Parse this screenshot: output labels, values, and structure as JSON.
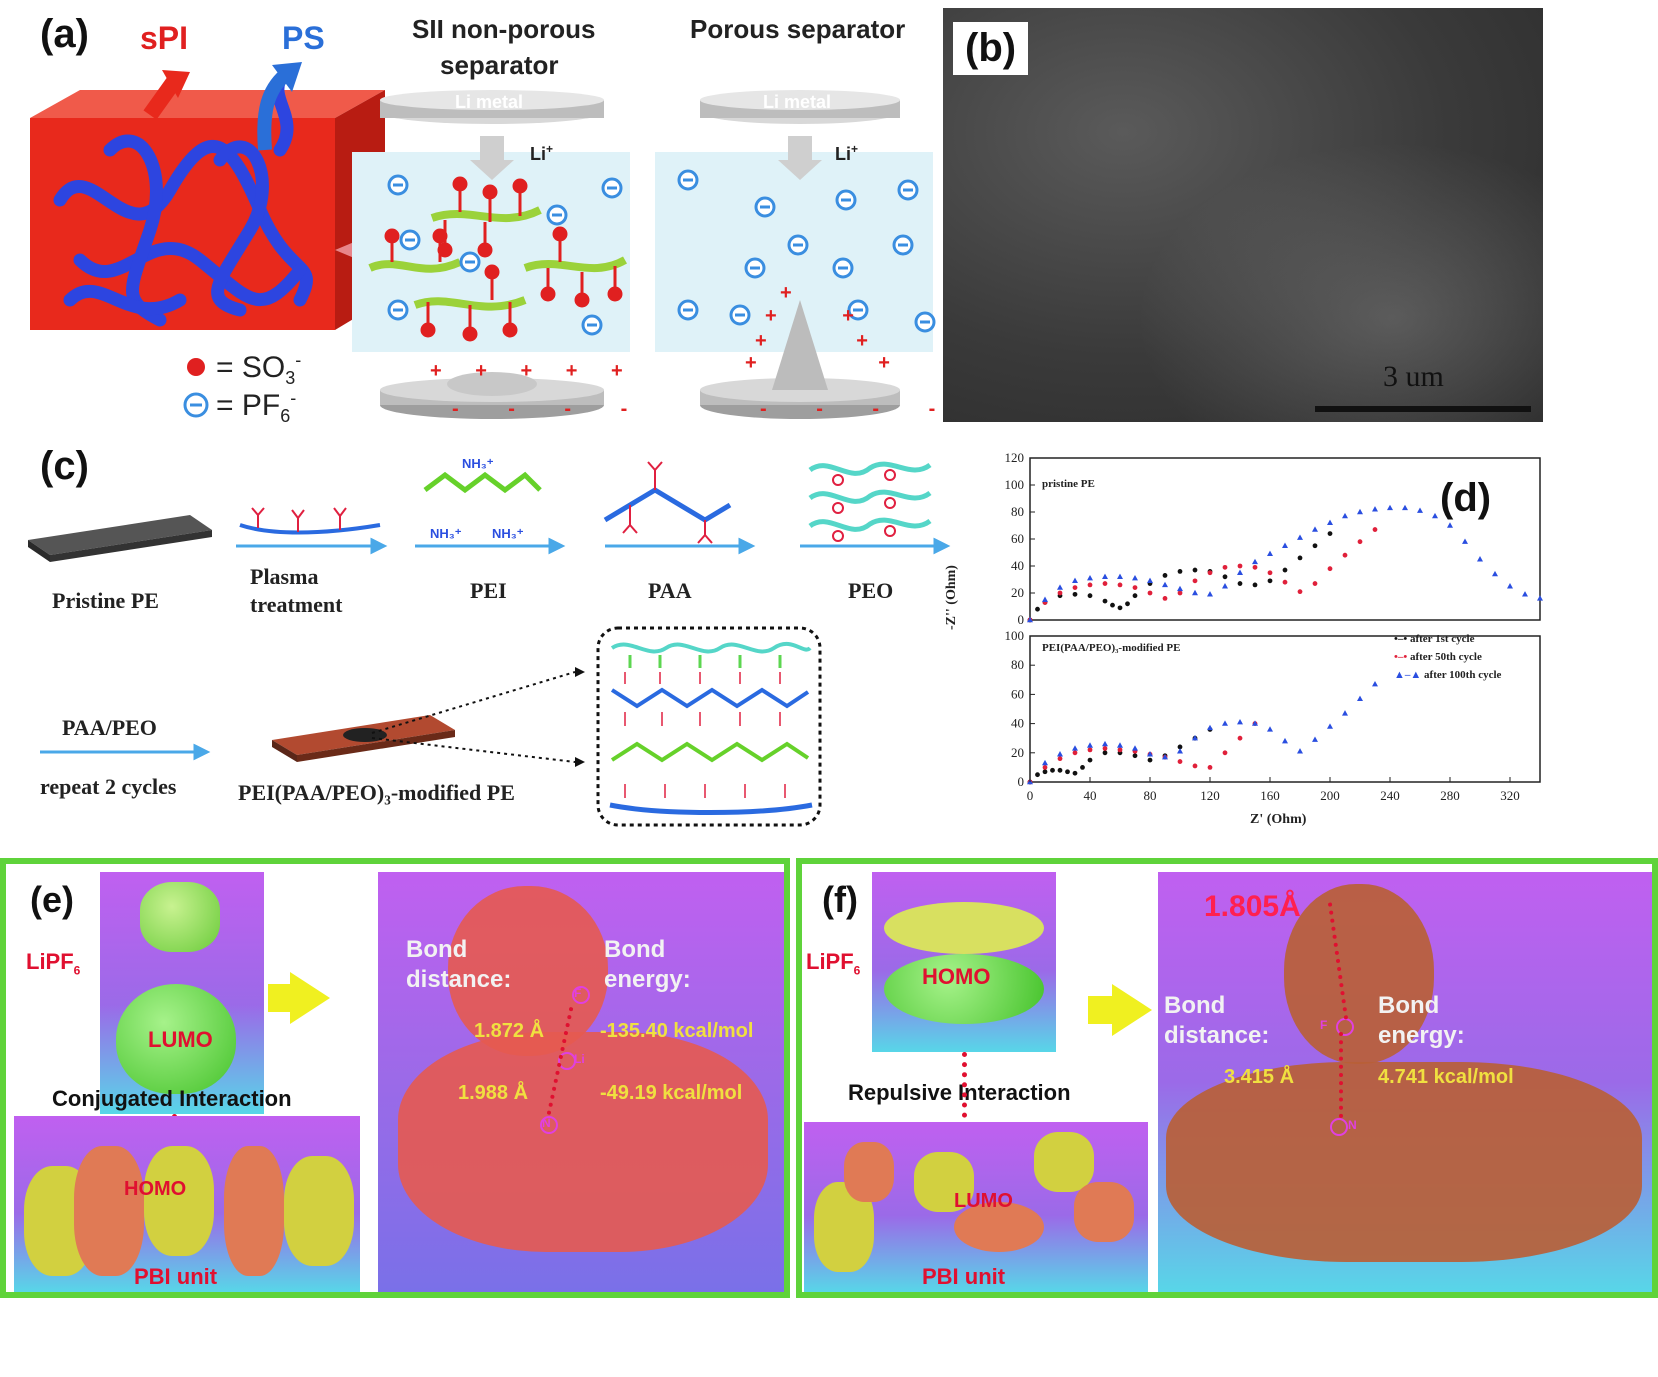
{
  "panel_a": {
    "label": "(a)",
    "spi": "sPI",
    "ps": "PS",
    "sii_title_1": "SII non-porous",
    "sii_title_2": "separator",
    "porous_title": "Porous separator",
    "li_metal": "Li metal",
    "li_ion": "Li",
    "li_sup": "+",
    "legend_so3": "= SO",
    "legend_so3_sub": "3",
    "legend_so3_sup": "-",
    "legend_pf6": "= PF",
    "legend_pf6_sub": "6",
    "legend_pf6_sup": "-",
    "colors": {
      "spi": "#e02020",
      "ps": "#2a6fd8",
      "cube": "#e8291c",
      "chain": "#2d45e0"
    }
  },
  "panel_b": {
    "label": "(b)",
    "scale": "3 um"
  },
  "panel_c": {
    "label": "(c)",
    "pristine": "Pristine PE",
    "plasma_1": "Plasma",
    "plasma_2": "treatment",
    "pei": "PEI",
    "paa": "PAA",
    "peo": "PEO",
    "paapeo": "PAA/PEO",
    "repeat": "repeat 2 cycles",
    "modified": "PEI(PAA/PEO)₃-modified PE",
    "nh3": "NH₃⁺"
  },
  "panel_d": {
    "label": "(d)",
    "top_note": "pristine PE",
    "bottom_note": "PEI(PAA/PEO)₃-modified PE",
    "ylabel": "-Z'' (Ohm)",
    "xlabel": "Z' (Ohm)",
    "legend": [
      "after 1st cycle",
      "after 50th cycle",
      "after 100th cycle"
    ],
    "xticks": [
      "0",
      "40",
      "80",
      "120",
      "160",
      "200",
      "240",
      "280",
      "320"
    ],
    "yticks_top": [
      "0",
      "20",
      "40",
      "60",
      "80",
      "100",
      "120"
    ],
    "yticks_bottom": [
      "0",
      "20",
      "40",
      "60",
      "80",
      "100"
    ]
  },
  "chart_data": [
    {
      "type": "scatter",
      "title": "",
      "xlabel": "Z' (Ohm)",
      "ylabel": "-Z'' (Ohm)",
      "xlim": [
        0,
        340
      ],
      "ylim": [
        0,
        120
      ],
      "annotation": "pristine PE",
      "series": [
        {
          "name": "after 1st cycle",
          "color": "#111111",
          "x": [
            0,
            5,
            10,
            20,
            30,
            40,
            50,
            55,
            60,
            65,
            70,
            80,
            90,
            100,
            110,
            120,
            130,
            140,
            150,
            160,
            170,
            180,
            190,
            200
          ],
          "y": [
            0,
            8,
            13,
            18,
            19,
            18,
            14,
            11,
            9,
            12,
            18,
            27,
            33,
            36,
            37,
            36,
            32,
            27,
            26,
            29,
            37,
            46,
            55,
            64
          ]
        },
        {
          "name": "after 50th cycle",
          "color": "#e0203a",
          "x": [
            0,
            10,
            20,
            30,
            40,
            50,
            60,
            70,
            80,
            90,
            100,
            110,
            120,
            130,
            140,
            150,
            160,
            170,
            180,
            190,
            200,
            210,
            220,
            230
          ],
          "y": [
            0,
            13,
            20,
            24,
            26,
            27,
            26,
            24,
            20,
            16,
            20,
            29,
            35,
            39,
            40,
            39,
            35,
            28,
            21,
            27,
            38,
            48,
            58,
            67
          ]
        },
        {
          "name": "after 100th cycle",
          "color": "#2a4ee0",
          "x": [
            0,
            10,
            20,
            30,
            40,
            50,
            60,
            70,
            80,
            90,
            100,
            110,
            120,
            130,
            140,
            150,
            160,
            170,
            180,
            190,
            200,
            210,
            220,
            230,
            240,
            250,
            260,
            270,
            280,
            290,
            300,
            310,
            320,
            330,
            340
          ],
          "y": [
            0,
            15,
            24,
            29,
            31,
            32,
            32,
            31,
            29,
            26,
            23,
            20,
            19,
            25,
            35,
            43,
            49,
            55,
            61,
            67,
            72,
            77,
            80,
            82,
            83,
            83,
            81,
            77,
            70,
            58,
            45,
            34,
            25,
            19,
            16
          ]
        }
      ]
    },
    {
      "type": "scatter",
      "title": "",
      "xlabel": "Z' (Ohm)",
      "ylabel": "-Z'' (Ohm)",
      "xlim": [
        0,
        340
      ],
      "ylim": [
        0,
        100
      ],
      "annotation": "PEI(PAA/PEO)₃-modified PE",
      "series": [
        {
          "name": "after 1st cycle",
          "color": "#111111",
          "x": [
            0,
            5,
            10,
            15,
            20,
            25,
            30,
            35,
            40,
            50,
            60,
            70,
            80,
            90,
            100,
            110,
            120
          ],
          "y": [
            0,
            5,
            7,
            8,
            8,
            7,
            6,
            10,
            15,
            20,
            20,
            18,
            15,
            18,
            24,
            30,
            36
          ]
        },
        {
          "name": "after 50th cycle",
          "color": "#e0203a",
          "x": [
            0,
            10,
            20,
            30,
            40,
            50,
            60,
            70,
            80,
            90,
            100,
            110,
            120,
            130,
            140,
            150
          ],
          "y": [
            0,
            10,
            16,
            20,
            22,
            23,
            22,
            21,
            19,
            17,
            14,
            11,
            10,
            20,
            30,
            40
          ]
        },
        {
          "name": "after 100th cycle",
          "color": "#2a4ee0",
          "x": [
            0,
            10,
            20,
            30,
            40,
            50,
            60,
            70,
            80,
            90,
            100,
            110,
            120,
            130,
            140,
            150,
            160,
            170,
            180,
            190,
            200,
            210,
            220,
            230
          ],
          "y": [
            0,
            13,
            19,
            23,
            25,
            26,
            25,
            23,
            19,
            17,
            21,
            30,
            37,
            40,
            41,
            40,
            36,
            28,
            21,
            29,
            38,
            47,
            57,
            67
          ]
        }
      ]
    }
  ],
  "panel_e": {
    "label": "(e)",
    "lipf6": "LiPF",
    "lipf6_sub": "6",
    "lumo": "LUMO",
    "homo": "HOMO",
    "interaction": "Conjugated Interaction",
    "unit": "PBI unit",
    "bond_distance_1": "Bond",
    "bond_distance_2": "distance:",
    "bond_energy_1": "Bond",
    "bond_energy_2": "energy:",
    "d1": "1.872 Å",
    "e1": "-135.40 kcal/mol",
    "d2": "1.988 Å",
    "e2": "-49.19 kcal/mol",
    "atom_f": "F",
    "atom_li": "Li",
    "atom_n": "N"
  },
  "panel_f": {
    "label": "(f)",
    "lipf6": "LiPF",
    "lipf6_sub": "6",
    "homo": "HOMO",
    "lumo": "LUMO",
    "interaction": "Repulsive Interaction",
    "unit": "PBI unit",
    "top_dist": "1.805Å",
    "bond_distance_1": "Bond",
    "bond_distance_2": "distance:",
    "bond_energy_1": "Bond",
    "bond_energy_2": "energy:",
    "d1": "3.415 Å",
    "e1": "4.741 kcal/mol",
    "atom_f": "F",
    "atom_n": "N"
  }
}
